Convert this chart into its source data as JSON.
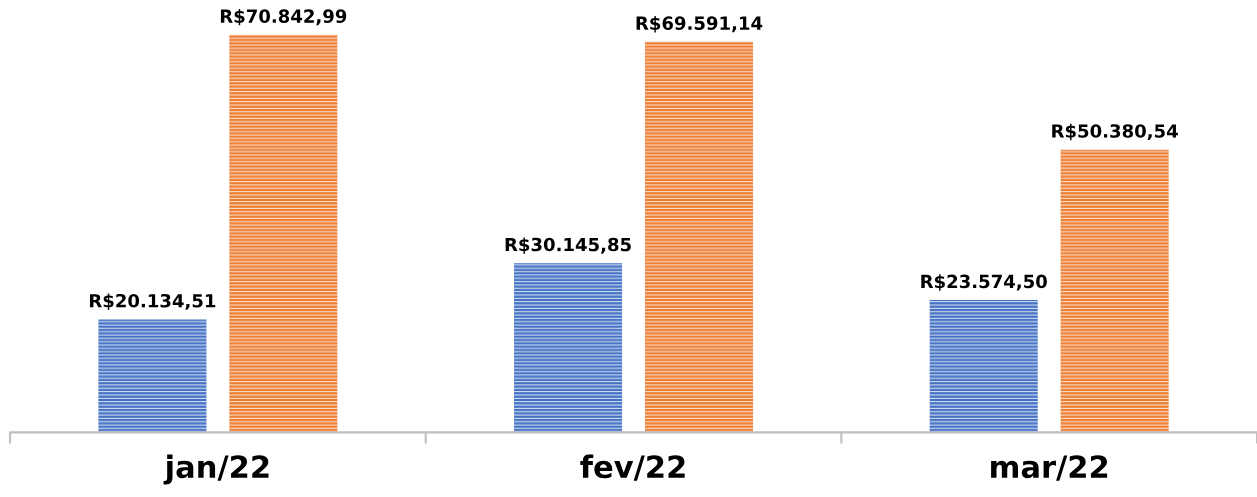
{
  "chart_data": {
    "type": "bar",
    "categories": [
      "jan/22",
      "fev/22",
      "mar/22"
    ],
    "series": [
      {
        "color": "#4472c4",
        "values": [
          20134.51,
          30145.85,
          23574.5
        ],
        "value_labels": [
          "R$20.134,51",
          "R$30.145,85",
          "R$23.574,50"
        ]
      },
      {
        "color": "#ed7d31",
        "values": [
          70842.99,
          69591.14,
          50380.54
        ],
        "value_labels": [
          "R$70.842,99",
          "R$69.591,14",
          "R$50.380,54"
        ]
      }
    ],
    "grid": false
  }
}
